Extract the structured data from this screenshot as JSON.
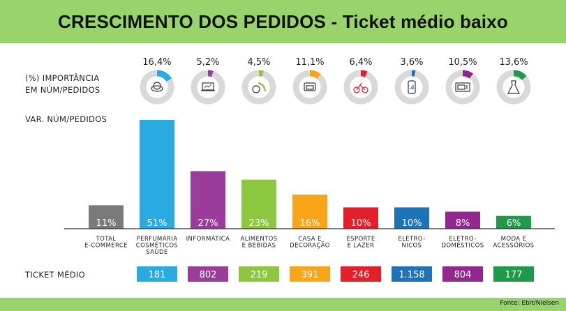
{
  "title": "CRESCIMENTO DOS PEDIDOS - Ticket médio baixo",
  "labels": {
    "importance_line1": "(%) IMPORTÂNCIA",
    "importance_line2": "EM NÚM/PEDIDOS",
    "variation": "VAR. NÚM/PEDIDOS",
    "ticket": "TICKET MÉDIO"
  },
  "source": "Fonte: Ebit/Nielsen",
  "colors": {
    "header_bg": "#98d36b",
    "ring_bg": "#d9d9d9",
    "ticket_neutral": "#ffffff"
  },
  "chart_data": {
    "type": "bar",
    "title": "CRESCIMENTO DOS PEDIDOS - Ticket médio baixo",
    "ylabel": "VAR. NÚM/PEDIDOS",
    "ylim": [
      0,
      51
    ],
    "categories": [
      {
        "lines": [
          "TOTAL",
          "E-COMMERCE"
        ],
        "value": 11,
        "value_label": "11%",
        "color": "#7a7a7a",
        "importance": null,
        "importance_label": null,
        "ticket": null,
        "icon": null
      },
      {
        "lines": [
          "PERFUMARIA",
          "COSMÉTICOS",
          "SAÚDE"
        ],
        "value": 51,
        "value_label": "51%",
        "color": "#29abe2",
        "importance": 16.4,
        "importance_label": "16,4%",
        "ticket": "181",
        "icon": "compact-mirror-icon"
      },
      {
        "lines": [
          "INFORMÁTICA"
        ],
        "value": 27,
        "value_label": "27%",
        "color": "#9b3c9a",
        "importance": 5.2,
        "importance_label": "5,2%",
        "ticket": "802",
        "icon": "laptop-icon"
      },
      {
        "lines": [
          "ALIMENTOS",
          "E BEBIDAS"
        ],
        "value": 23,
        "value_label": "23%",
        "color": "#8dc63f",
        "importance": 4.5,
        "importance_label": "4,5%",
        "ticket": "219",
        "icon": "fruit-icon"
      },
      {
        "lines": [
          "CASA E",
          "DECORAÇÃO"
        ],
        "value": 16,
        "value_label": "16%",
        "color": "#f9a51a",
        "importance": 11.1,
        "importance_label": "11,1%",
        "ticket": "391",
        "icon": "armchair-icon"
      },
      {
        "lines": [
          "ESPORTE",
          "E LAZER"
        ],
        "value": 10,
        "value_label": "10%",
        "color": "#e3202a",
        "importance": 6.4,
        "importance_label": "6,4%",
        "ticket": "246",
        "icon": "bicycle-icon"
      },
      {
        "lines": [
          "ELETRO-",
          "NICOS"
        ],
        "value": 10,
        "value_label": "10%",
        "color": "#1d73b8",
        "importance": 3.6,
        "importance_label": "3,6%",
        "ticket": "1.158",
        "icon": "smartphone-icon"
      },
      {
        "lines": [
          "ELETRO-",
          "DOMÉSTICOS"
        ],
        "value": 8,
        "value_label": "8%",
        "color": "#92278f",
        "importance": 10.5,
        "importance_label": "10,5%",
        "ticket": "804",
        "icon": "microwave-icon"
      },
      {
        "lines": [
          "MODA E",
          "ACESSÓRIOS"
        ],
        "value": 6,
        "value_label": "6%",
        "color": "#1f9a4a",
        "importance": 13.6,
        "importance_label": "13,6%",
        "ticket": "177",
        "icon": "dress-icon"
      }
    ]
  }
}
